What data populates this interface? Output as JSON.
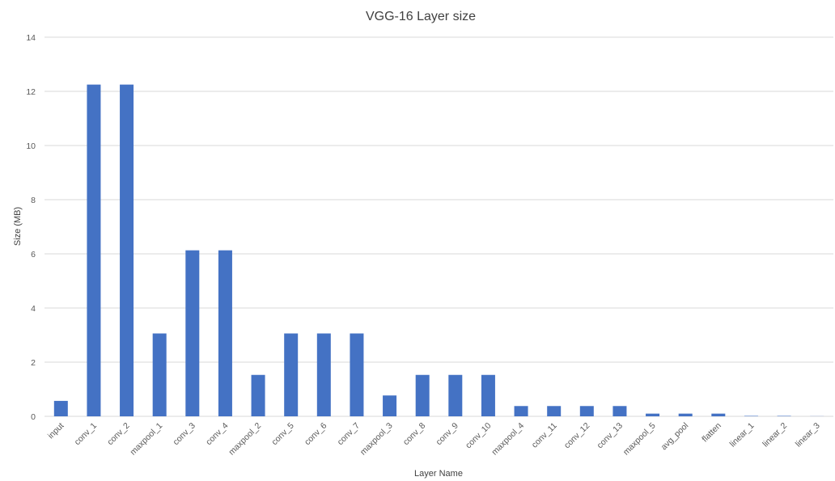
{
  "chart_data": {
    "type": "bar",
    "title": "VGG-16 Layer size",
    "xlabel": "Layer Name",
    "ylabel": "Size (MB)",
    "ylim": [
      0,
      14
    ],
    "yticks": [
      "0",
      "2",
      "4",
      "6",
      "8",
      "10",
      "12",
      "14"
    ],
    "grid": true,
    "legend": "none",
    "bar_color": "#4472c4",
    "categories": [
      "input",
      "conv_1",
      "conv_2",
      "maxpool_1",
      "conv_3",
      "conv_4",
      "maxpool_2",
      "conv_5",
      "conv_6",
      "conv_7",
      "maxpool_3",
      "conv_8",
      "conv_9",
      "conv_10",
      "maxpool_4",
      "conv_11",
      "conv_12",
      "conv_13",
      "maxpool_5",
      "avg_pool",
      "flatten",
      "linear_1",
      "linear_2",
      "linear_3"
    ],
    "values": [
      0.57,
      12.25,
      12.25,
      3.06,
      6.13,
      6.13,
      1.53,
      3.06,
      3.06,
      3.06,
      0.77,
      1.53,
      1.53,
      1.53,
      0.38,
      0.38,
      0.38,
      0.38,
      0.1,
      0.1,
      0.1,
      0.016,
      0.016,
      0.004
    ]
  }
}
